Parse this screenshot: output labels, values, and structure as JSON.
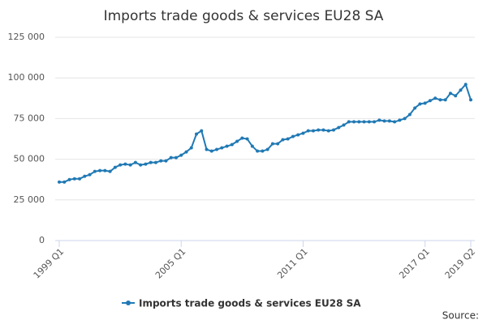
{
  "chart_data": {
    "type": "line",
    "title": "Imports trade goods & services EU28 SA",
    "source": "Source:",
    "categories": [
      "1999 Q1",
      null,
      null,
      null,
      null,
      null,
      null,
      null,
      null,
      null,
      null,
      null,
      null,
      null,
      null,
      null,
      null,
      null,
      null,
      null,
      null,
      null,
      null,
      null,
      "2005 Q1",
      null,
      null,
      null,
      null,
      null,
      null,
      null,
      null,
      null,
      null,
      null,
      null,
      null,
      null,
      null,
      null,
      null,
      null,
      null,
      null,
      null,
      null,
      null,
      "2011 Q1",
      null,
      null,
      null,
      null,
      null,
      null,
      null,
      null,
      null,
      null,
      null,
      null,
      null,
      null,
      null,
      null,
      null,
      null,
      null,
      null,
      null,
      null,
      null,
      "2017 Q1",
      null,
      null,
      null,
      null,
      null,
      null,
      null,
      null,
      "2019 Q2"
    ],
    "series": [
      {
        "name": "Imports trade goods & services EU28 SA",
        "color": "#2079b4",
        "values": [
          36000,
          36000,
          37500,
          38000,
          38000,
          39500,
          40500,
          42500,
          43000,
          43000,
          42500,
          45000,
          46500,
          47000,
          46500,
          48000,
          46500,
          47000,
          48000,
          48000,
          49000,
          49000,
          51000,
          51000,
          52500,
          54500,
          57000,
          65500,
          67500,
          56000,
          55000,
          56000,
          57000,
          58000,
          59000,
          61000,
          63000,
          62500,
          58000,
          55000,
          55000,
          56000,
          59500,
          59500,
          62000,
          62500,
          64000,
          65000,
          66000,
          67500,
          67500,
          68000,
          68000,
          67500,
          68000,
          69500,
          71000,
          73000,
          73000,
          73000,
          73000,
          73000,
          73000,
          74000,
          73500,
          73500,
          73000,
          74000,
          75000,
          77500,
          81500,
          84000,
          84500,
          86000,
          87500,
          86500,
          86500,
          90500,
          89000,
          92500,
          96000,
          86500
        ]
      }
    ],
    "ylim": [
      0,
      125000
    ],
    "yticks": [
      0,
      {
        "value": 25000,
        "label": "25 000"
      },
      {
        "value": 50000,
        "label": "50 000"
      },
      {
        "value": 75000,
        "label": "75 000"
      },
      {
        "value": 100000,
        "label": "100 000"
      },
      {
        "value": 125000,
        "label": "125 000"
      }
    ],
    "grid": true
  }
}
